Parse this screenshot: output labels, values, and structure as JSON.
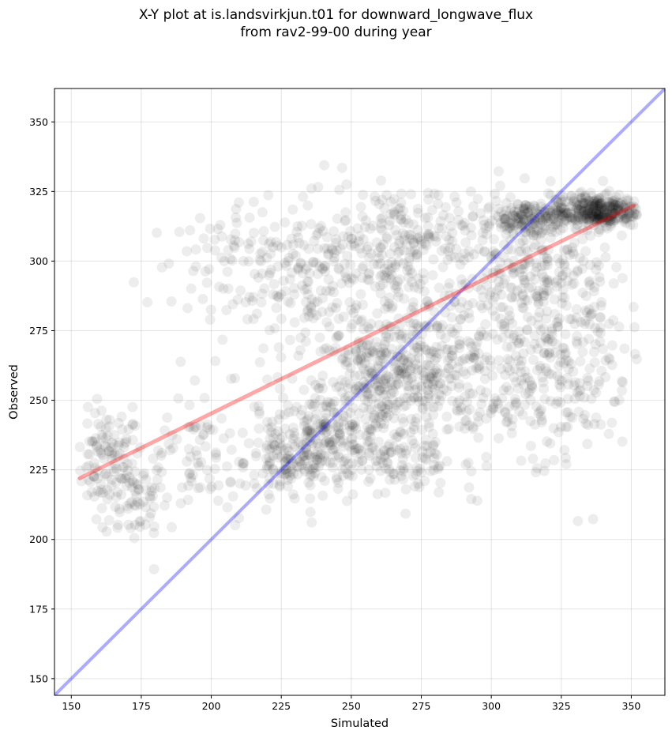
{
  "chart_data": {
    "type": "scatter",
    "title_line1": "X-Y plot at is.landsvirkjun.t01 for downward_longwave_flux",
    "title_line2": "from rav2-99-00 during year",
    "xlabel": "Simulated",
    "ylabel": "Observed",
    "xlim": [
      144,
      362
    ],
    "ylim": [
      144,
      362
    ],
    "xticks": [
      150,
      175,
      200,
      225,
      250,
      275,
      300,
      325,
      350
    ],
    "yticks": [
      150,
      175,
      200,
      225,
      250,
      275,
      300,
      325,
      350
    ],
    "grid": true,
    "point_color": "#000000",
    "point_opacity": 0.07,
    "identity_line": {
      "color": "#0000ff",
      "from": [
        144,
        144
      ],
      "to": [
        362,
        362
      ]
    },
    "fit_line": {
      "color": "#ff0000",
      "from": [
        153,
        222
      ],
      "to": [
        351,
        320
      ]
    },
    "clusters": [
      {
        "x": 163,
        "y": 228,
        "sx": 6,
        "sy": 9,
        "n": 110
      },
      {
        "x": 172,
        "y": 214,
        "sx": 6,
        "sy": 8,
        "n": 50
      },
      {
        "x": 195,
        "y": 230,
        "sx": 15,
        "sy": 12,
        "n": 110
      },
      {
        "x": 205,
        "y": 300,
        "sx": 14,
        "sy": 8,
        "n": 60
      },
      {
        "x": 228,
        "y": 228,
        "sx": 8,
        "sy": 8,
        "n": 130
      },
      {
        "x": 240,
        "y": 238,
        "sx": 8,
        "sy": 7,
        "n": 130
      },
      {
        "x": 258,
        "y": 255,
        "sx": 10,
        "sy": 12,
        "n": 220
      },
      {
        "x": 275,
        "y": 262,
        "sx": 12,
        "sy": 14,
        "n": 220
      },
      {
        "x": 240,
        "y": 290,
        "sx": 18,
        "sy": 15,
        "n": 220
      },
      {
        "x": 270,
        "y": 307,
        "sx": 20,
        "sy": 11,
        "n": 260
      },
      {
        "x": 300,
        "y": 262,
        "sx": 14,
        "sy": 20,
        "n": 220
      },
      {
        "x": 318,
        "y": 295,
        "sx": 12,
        "sy": 14,
        "n": 170
      },
      {
        "x": 313,
        "y": 315,
        "sx": 8,
        "sy": 3,
        "n": 150
      },
      {
        "x": 337,
        "y": 318,
        "sx": 8,
        "sy": 3,
        "n": 350
      },
      {
        "x": 330,
        "y": 268,
        "sx": 10,
        "sy": 20,
        "n": 180
      },
      {
        "x": 262,
        "y": 228,
        "sx": 12,
        "sy": 6,
        "n": 110
      }
    ]
  }
}
